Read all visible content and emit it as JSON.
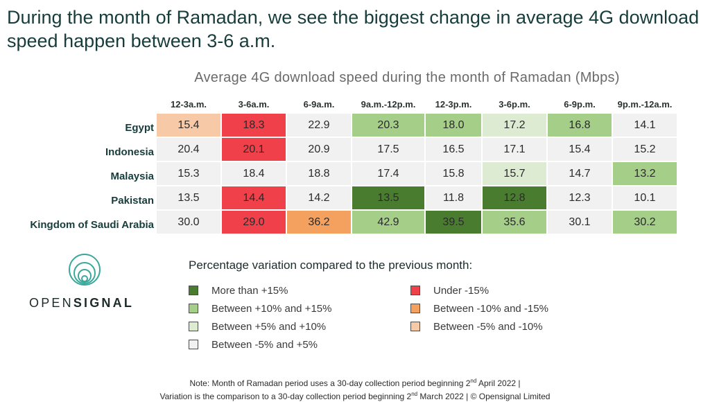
{
  "headline": "During the month of Ramadan, we see the biggest change in average 4G download speed happen between 3-6 a.m.",
  "brand": {
    "logo_icon": "concentric-circles-icon",
    "name_part1": "OPEN",
    "name_part2": "SIGNAL",
    "color": "#3aa89a"
  },
  "chart_data": {
    "type": "heatmap",
    "title": "Average 4G download speed during the month of Ramadan (Mbps)",
    "columns": [
      "12-3a.m.",
      "3-6a.m.",
      "6-9a.m.",
      "9a.m.-12p.m.",
      "12-3p.m.",
      "3-6p.m.",
      "6-9p.m.",
      "9p.m.-12a.m."
    ],
    "rows": [
      "Egypt",
      "Indonesia",
      "Malaysia",
      "Pakistan",
      "Kingdom of Saudi Arabia"
    ],
    "values": [
      [
        "15.4",
        "18.3",
        "22.9",
        "20.3",
        "18.0",
        "17.2",
        "16.8",
        "14.1"
      ],
      [
        "20.4",
        "20.1",
        "20.9",
        "17.5",
        "16.5",
        "17.1",
        "15.4",
        "15.2"
      ],
      [
        "15.3",
        "18.4",
        "18.8",
        "17.4",
        "15.8",
        "15.7",
        "14.7",
        "13.2"
      ],
      [
        "13.5",
        "14.4",
        "14.2",
        "13.5",
        "11.8",
        "12.8",
        "12.3",
        "10.1"
      ],
      [
        "30.0",
        "29.0",
        "36.2",
        "42.9",
        "39.5",
        "35.6",
        "30.1",
        "30.2"
      ]
    ],
    "categories": [
      [
        "neg5to10",
        "under15",
        "mid",
        "pos10to15",
        "pos10to15",
        "pos5to10",
        "pos10to15",
        "mid"
      ],
      [
        "mid",
        "under15",
        "mid",
        "mid",
        "mid",
        "mid",
        "mid",
        "mid"
      ],
      [
        "mid",
        "mid",
        "mid",
        "mid",
        "mid",
        "pos5to10",
        "mid",
        "pos10to15"
      ],
      [
        "mid",
        "under15",
        "mid",
        "over15",
        "mid",
        "over15",
        "mid",
        "mid"
      ],
      [
        "mid",
        "under15",
        "neg10to15",
        "pos10to15",
        "over15",
        "pos10to15",
        "mid",
        "pos10to15"
      ]
    ]
  },
  "legend": {
    "title": "Percentage variation compared to the previous month:",
    "items": [
      {
        "key": "over15",
        "label": "More than +15%",
        "color": "#4a7c2f"
      },
      {
        "key": "pos10to15",
        "label": "Between +10% and +15%",
        "color": "#a5cf88"
      },
      {
        "key": "pos5to10",
        "label": "Between +5% and +10%",
        "color": "#dcebd1"
      },
      {
        "key": "mid",
        "label": "Between -5% and +5%",
        "color": "#f1f1f1"
      },
      {
        "key": "under15",
        "label": "Under -15%",
        "color": "#f0404a"
      },
      {
        "key": "neg10to15",
        "label": "Between -10% and -15%",
        "color": "#f4a05f"
      },
      {
        "key": "neg5to10",
        "label": "Between -5% and -10%",
        "color": "#f8c9a6"
      }
    ]
  },
  "note": {
    "line1_a": "Note: Month of Ramadan period uses a 30-day collection period beginning 2",
    "line1_sup": "nd",
    "line1_b": " April 2022 |",
    "line2_a": "Variation is the comparison to a 30-day collection period beginning 2",
    "line2_sup": "nd",
    "line2_b": " March 2022 | © Opensignal Limited"
  }
}
